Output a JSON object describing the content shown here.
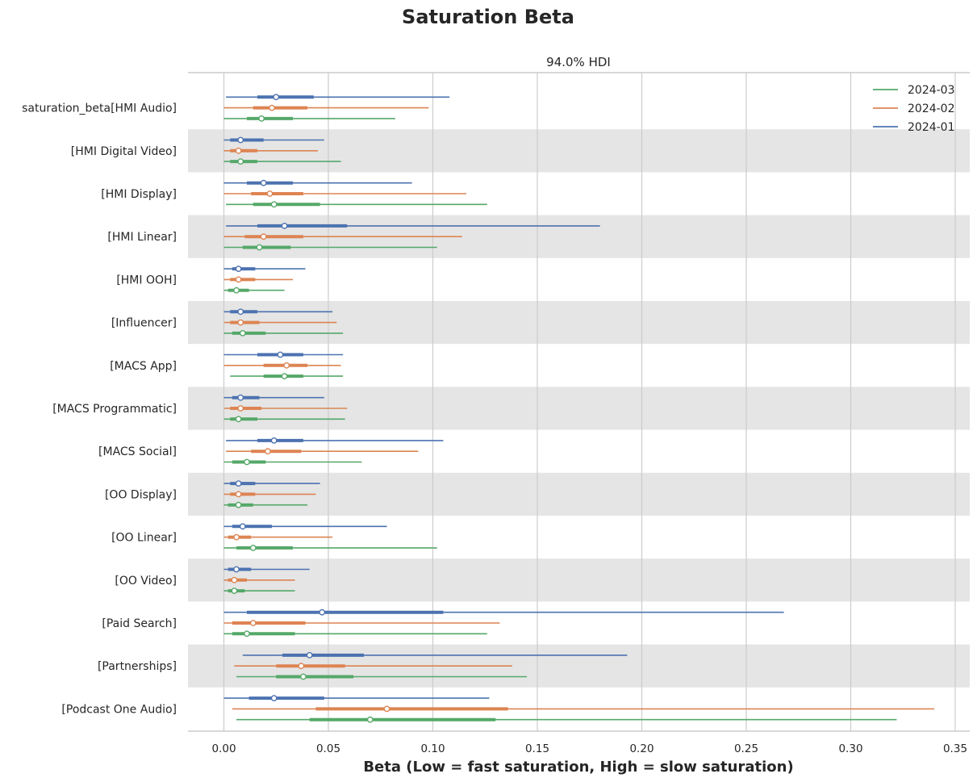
{
  "chart_data": {
    "type": "forest",
    "title": "Saturation Beta",
    "subtitle": "94.0% HDI",
    "xlabel": "Beta (Low = fast saturation, High = slow saturation)",
    "xlim": [
      -0.017,
      0.358
    ],
    "xticks": [
      0.0,
      0.05,
      0.1,
      0.15,
      0.2,
      0.25,
      0.3,
      0.35
    ],
    "xtick_labels": [
      "0.00",
      "0.05",
      "0.10",
      "0.15",
      "0.20",
      "0.25",
      "0.30",
      "0.35"
    ],
    "grid": "vertical",
    "legend_position": "top-right",
    "alternating_row_bands": true,
    "colors": {
      "2024-03": "#55a868",
      "2024-02": "#dd8452",
      "2024-01": "#4c72b0",
      "band": "#e5e5e5",
      "grid": "#cccccc"
    },
    "legend": [
      "2024-03",
      "2024-02",
      "2024-01"
    ],
    "row_labels": [
      "saturation_beta[HMI Audio]",
      "[HMI Digital Video]",
      "[HMI Display]",
      "[HMI Linear]",
      "[HMI OOH]",
      "[Influencer]",
      "[MACS App]",
      "[MACS Programmatic]",
      "[MACS Social]",
      "[OO Display]",
      "[OO Linear]",
      "[OO Video]",
      "[Paid Search]",
      "[Partnerships]",
      "[Podcast One Audio]"
    ],
    "series_order_top_to_bottom": [
      "2024-01",
      "2024-02",
      "2024-03"
    ],
    "value_fields": [
      "hdi94_low",
      "iqr_low",
      "median",
      "iqr_high",
      "hdi94_high"
    ],
    "series": [
      {
        "name": "2024-01",
        "values": [
          [
            0.001,
            0.016,
            0.025,
            0.043,
            0.108
          ],
          [
            0.0,
            0.003,
            0.008,
            0.019,
            0.048
          ],
          [
            0.0,
            0.011,
            0.019,
            0.033,
            0.09
          ],
          [
            0.001,
            0.016,
            0.029,
            0.059,
            0.18
          ],
          [
            0.0,
            0.004,
            0.007,
            0.015,
            0.039
          ],
          [
            0.0,
            0.003,
            0.008,
            0.016,
            0.052
          ],
          [
            0.0,
            0.016,
            0.027,
            0.038,
            0.057
          ],
          [
            0.0,
            0.004,
            0.008,
            0.017,
            0.048
          ],
          [
            0.001,
            0.016,
            0.024,
            0.038,
            0.105
          ],
          [
            0.0,
            0.003,
            0.007,
            0.015,
            0.046
          ],
          [
            0.0,
            0.004,
            0.009,
            0.023,
            0.078
          ],
          [
            0.0,
            0.002,
            0.006,
            0.013,
            0.041
          ],
          [
            0.0,
            0.011,
            0.047,
            0.105,
            0.268
          ],
          [
            0.009,
            0.028,
            0.041,
            0.067,
            0.193
          ],
          [
            0.0,
            0.012,
            0.024,
            0.048,
            0.127
          ]
        ]
      },
      {
        "name": "2024-02",
        "values": [
          [
            0.0,
            0.014,
            0.023,
            0.04,
            0.098
          ],
          [
            0.0,
            0.003,
            0.007,
            0.016,
            0.045
          ],
          [
            0.0,
            0.013,
            0.022,
            0.038,
            0.116
          ],
          [
            0.0,
            0.01,
            0.019,
            0.038,
            0.114
          ],
          [
            0.0,
            0.003,
            0.007,
            0.015,
            0.033
          ],
          [
            0.0,
            0.003,
            0.008,
            0.017,
            0.054
          ],
          [
            0.0,
            0.019,
            0.03,
            0.04,
            0.056
          ],
          [
            0.0,
            0.003,
            0.008,
            0.018,
            0.059
          ],
          [
            0.001,
            0.013,
            0.021,
            0.037,
            0.093
          ],
          [
            0.0,
            0.003,
            0.007,
            0.015,
            0.044
          ],
          [
            0.0,
            0.002,
            0.006,
            0.013,
            0.052
          ],
          [
            0.0,
            0.002,
            0.005,
            0.011,
            0.034
          ],
          [
            0.0,
            0.004,
            0.014,
            0.039,
            0.132
          ],
          [
            0.005,
            0.025,
            0.037,
            0.058,
            0.138
          ],
          [
            0.004,
            0.044,
            0.078,
            0.136,
            0.34
          ]
        ]
      },
      {
        "name": "2024-03",
        "values": [
          [
            0.0,
            0.011,
            0.018,
            0.033,
            0.082
          ],
          [
            0.0,
            0.003,
            0.008,
            0.016,
            0.056
          ],
          [
            0.001,
            0.014,
            0.024,
            0.046,
            0.126
          ],
          [
            0.0,
            0.009,
            0.017,
            0.032,
            0.102
          ],
          [
            0.0,
            0.002,
            0.006,
            0.012,
            0.029
          ],
          [
            0.0,
            0.004,
            0.009,
            0.02,
            0.057
          ],
          [
            0.003,
            0.019,
            0.029,
            0.038,
            0.057
          ],
          [
            0.0,
            0.003,
            0.007,
            0.016,
            0.058
          ],
          [
            0.0,
            0.004,
            0.011,
            0.02,
            0.066
          ],
          [
            0.0,
            0.002,
            0.007,
            0.014,
            0.04
          ],
          [
            0.0,
            0.006,
            0.014,
            0.033,
            0.102
          ],
          [
            0.0,
            0.002,
            0.005,
            0.01,
            0.034
          ],
          [
            0.0,
            0.004,
            0.011,
            0.034,
            0.126
          ],
          [
            0.006,
            0.025,
            0.038,
            0.062,
            0.145
          ],
          [
            0.006,
            0.041,
            0.07,
            0.13,
            0.322
          ]
        ]
      }
    ]
  }
}
